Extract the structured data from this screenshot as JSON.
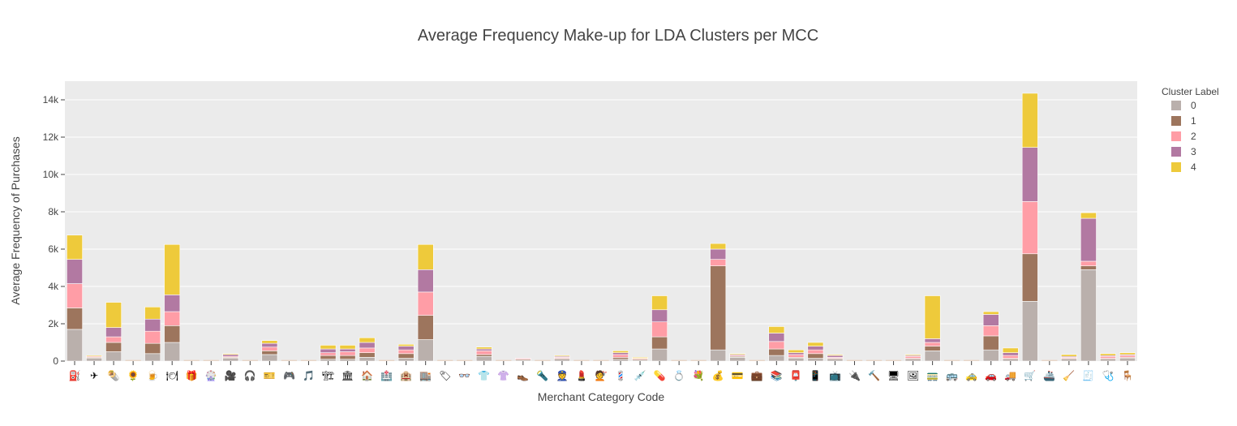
{
  "chart_data": {
    "type": "bar",
    "stacked": true,
    "title": "Average Frequency Make-up for LDA Clusters per MCC",
    "xlabel": "Merchant Category Code",
    "ylabel": "Average Frequency of Purchases",
    "ylim": [
      0,
      15000
    ],
    "yticks": [
      0,
      2000,
      4000,
      6000,
      8000,
      10000,
      12000,
      14000
    ],
    "ytick_labels": [
      "0",
      "2k",
      "4k",
      "6k",
      "8k",
      "10k",
      "12k",
      "14k"
    ],
    "grid": true,
    "legend_placement": "top-right",
    "legend_title": "Cluster Label",
    "categories": [
      "⛽",
      "✈",
      "🌯",
      "🌻",
      "🍺",
      "🍽",
      "🎁",
      "🎡",
      "🎥",
      "🎧",
      "🎫",
      "🎮",
      "🎵",
      "🏗",
      "🏛",
      "🏠",
      "🏥",
      "🏨",
      "🏬",
      "🏷",
      "👓",
      "👕",
      "👚",
      "👞",
      "🔦",
      "👮",
      "💄",
      "💇",
      "💈",
      "💉",
      "💊",
      "💍",
      "💐",
      "💰",
      "💳",
      "💼",
      "📚",
      "📮",
      "📱",
      "📺",
      "🔌",
      "🔨",
      "🖥",
      "🖼",
      "🚃",
      "🚌",
      "🚕",
      "🚗",
      "🚚",
      "🛒",
      "🚢",
      "🧹",
      "🧾",
      "🩺",
      "🪑"
    ],
    "series": [
      {
        "name": "0",
        "color": "#bab0ac",
        "values": [
          1700,
          150,
          500,
          0,
          400,
          1000,
          0,
          0,
          150,
          0,
          350,
          0,
          0,
          100,
          100,
          200,
          0,
          150,
          1150,
          0,
          0,
          250,
          0,
          50,
          0,
          100,
          0,
          0,
          100,
          50,
          650,
          0,
          0,
          600,
          200,
          0,
          300,
          150,
          150,
          100,
          0,
          0,
          0,
          100,
          550,
          0,
          0,
          600,
          100,
          3200,
          0,
          100,
          4900,
          100,
          150
        ]
      },
      {
        "name": "1",
        "color": "#9d755d",
        "values": [
          1150,
          50,
          500,
          0,
          550,
          900,
          0,
          0,
          50,
          0,
          200,
          0,
          0,
          200,
          200,
          250,
          0,
          250,
          1300,
          0,
          0,
          100,
          0,
          50,
          0,
          50,
          0,
          0,
          100,
          50,
          650,
          0,
          0,
          4500,
          50,
          0,
          350,
          50,
          250,
          50,
          0,
          0,
          0,
          50,
          250,
          0,
          0,
          750,
          50,
          2550,
          0,
          50,
          200,
          50,
          50
        ]
      },
      {
        "name": "2",
        "color": "#ff9da6",
        "values": [
          1300,
          50,
          300,
          0,
          650,
          750,
          0,
          0,
          50,
          0,
          200,
          0,
          0,
          150,
          200,
          250,
          0,
          200,
          1250,
          0,
          0,
          200,
          0,
          50,
          0,
          50,
          0,
          0,
          150,
          50,
          800,
          0,
          0,
          350,
          50,
          0,
          400,
          150,
          200,
          50,
          0,
          0,
          0,
          100,
          200,
          0,
          0,
          550,
          150,
          2800,
          0,
          50,
          250,
          100,
          100
        ]
      },
      {
        "name": "3",
        "color": "#b279a2",
        "values": [
          1300,
          0,
          500,
          0,
          650,
          900,
          0,
          0,
          100,
          0,
          200,
          0,
          0,
          200,
          150,
          300,
          0,
          200,
          1200,
          0,
          0,
          100,
          0,
          0,
          0,
          50,
          0,
          0,
          100,
          0,
          650,
          0,
          0,
          550,
          50,
          0,
          450,
          100,
          200,
          100,
          0,
          0,
          0,
          50,
          200,
          0,
          0,
          600,
          150,
          2900,
          0,
          50,
          2300,
          50,
          50
        ]
      },
      {
        "name": "4",
        "color": "#eeca3b",
        "values": [
          1300,
          50,
          1350,
          0,
          650,
          2700,
          0,
          0,
          50,
          0,
          150,
          0,
          0,
          200,
          200,
          250,
          0,
          100,
          1350,
          0,
          0,
          100,
          0,
          0,
          0,
          50,
          0,
          0,
          100,
          50,
          750,
          0,
          0,
          300,
          50,
          0,
          350,
          150,
          200,
          50,
          0,
          0,
          0,
          50,
          2300,
          0,
          0,
          150,
          250,
          2900,
          0,
          100,
          300,
          100,
          100
        ]
      }
    ]
  }
}
